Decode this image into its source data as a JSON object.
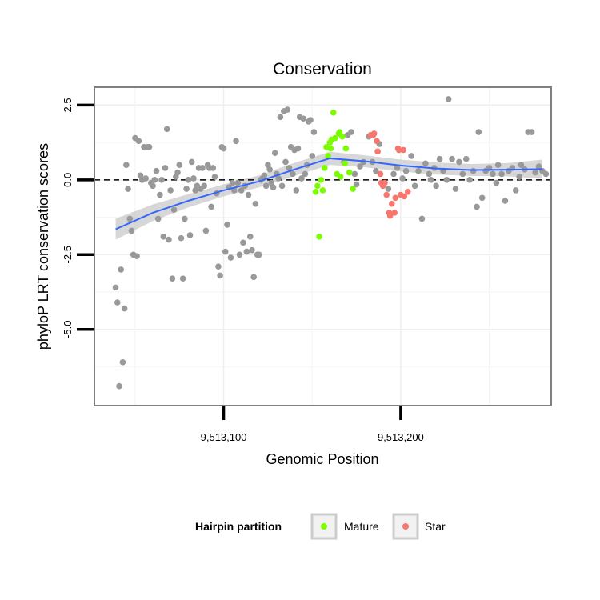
{
  "chart_data": {
    "type": "scatter",
    "title": "Conservation",
    "xlabel": "Genomic Position",
    "ylabel": "phyloP LRT conservation scores",
    "xlim": [
      9513027,
      9513285
    ],
    "ylim": [
      -7.55,
      3.1
    ],
    "x_ticks": [
      {
        "value": 9513100,
        "label": "9,513,100"
      },
      {
        "value": 9513200,
        "label": "9,513,200"
      }
    ],
    "y_ticks": [
      {
        "value": 2.5,
        "label": "2.5"
      },
      {
        "value": 0,
        "label": "0.0"
      },
      {
        "value": -2.5,
        "label": "-2.5"
      },
      {
        "value": -5,
        "label": "-5.0"
      }
    ],
    "reference_line": {
      "y": 0,
      "style": "dashed"
    },
    "legend": {
      "title": "Hairpin partition",
      "position": "bottom",
      "entries": [
        {
          "label": "Mature",
          "color": "#7cfc00"
        },
        {
          "label": "Star",
          "color": "#f8766d"
        }
      ]
    },
    "colors": {
      "other": "#999999",
      "mature": "#7cfc00",
      "star": "#f8766d",
      "smooth": "#3366ff",
      "band": "#bdbdbd"
    },
    "smooth": {
      "x": [
        9513039,
        9513060,
        9513080,
        9513100,
        9513120,
        9513140,
        9513160,
        9513180,
        9513200,
        9513220,
        9513240,
        9513260,
        9513280
      ],
      "y": [
        -1.65,
        -1.1,
        -0.7,
        -0.35,
        -0.05,
        0.35,
        0.72,
        0.62,
        0.48,
        0.38,
        0.33,
        0.34,
        0.36
      ],
      "band": [
        0.35,
        0.28,
        0.22,
        0.2,
        0.2,
        0.22,
        0.22,
        0.2,
        0.2,
        0.2,
        0.2,
        0.22,
        0.32
      ]
    },
    "series": [
      {
        "name": "Other",
        "points": [
          [
            9513039,
            -3.6
          ],
          [
            9513040,
            -4.1
          ],
          [
            9513042,
            -3.0
          ],
          [
            9513043,
            -6.1
          ],
          [
            9513041,
            -6.9
          ],
          [
            9513044,
            -4.3
          ],
          [
            9513045,
            0.5
          ],
          [
            9513046,
            -0.3
          ],
          [
            9513047,
            -1.3
          ],
          [
            9513048,
            -1.7
          ],
          [
            9513049,
            -2.5
          ],
          [
            9513051,
            -2.55
          ],
          [
            9513050,
            1.4
          ],
          [
            9513052,
            1.3
          ],
          [
            9513053,
            0.15
          ],
          [
            9513054,
            0.0
          ],
          [
            9513055,
            1.1
          ],
          [
            9513056,
            0.05
          ],
          [
            9513057,
            1.1
          ],
          [
            9513058,
            1.1
          ],
          [
            9513059,
            -0.1
          ],
          [
            9513060,
            -0.2
          ],
          [
            9513061,
            0.0
          ],
          [
            9513062,
            0.3
          ],
          [
            9513063,
            -1.3
          ],
          [
            9513064,
            -0.5
          ],
          [
            9513065,
            0.0
          ],
          [
            9513066,
            -1.9
          ],
          [
            9513067,
            0.4
          ],
          [
            9513068,
            1.7
          ],
          [
            9513069,
            -2.0
          ],
          [
            9513070,
            -0.35
          ],
          [
            9513071,
            -3.3
          ],
          [
            9513072,
            -1.0
          ],
          [
            9513073,
            0.1
          ],
          [
            9513074,
            0.25
          ],
          [
            9513075,
            0.5
          ],
          [
            9513076,
            -1.95
          ],
          [
            9513077,
            -3.3
          ],
          [
            9513078,
            -1.3
          ],
          [
            9513079,
            -0.3
          ],
          [
            9513080,
            0.0
          ],
          [
            9513081,
            -1.85
          ],
          [
            9513082,
            0.6
          ],
          [
            9513083,
            0.05
          ],
          [
            9513084,
            -0.35
          ],
          [
            9513085,
            -0.2
          ],
          [
            9513086,
            0.4
          ],
          [
            9513087,
            -0.3
          ],
          [
            9513088,
            0.4
          ],
          [
            9513089,
            -0.2
          ],
          [
            9513090,
            -1.7
          ],
          [
            9513091,
            0.5
          ],
          [
            9513092,
            0.4
          ],
          [
            9513093,
            -0.9
          ],
          [
            9513094,
            0.4
          ],
          [
            9513095,
            0.1
          ],
          [
            9513096,
            -0.45
          ],
          [
            9513097,
            -2.9
          ],
          [
            9513098,
            -3.2
          ],
          [
            9513099,
            1.1
          ],
          [
            9513100,
            1.05
          ],
          [
            9513101,
            -2.4
          ],
          [
            9513102,
            -1.5
          ],
          [
            9513103,
            -0.25
          ],
          [
            9513104,
            -2.6
          ],
          [
            9513105,
            -0.1
          ],
          [
            9513106,
            -0.35
          ],
          [
            9513107,
            1.3
          ],
          [
            9513108,
            -0.1
          ],
          [
            9513109,
            -2.5
          ],
          [
            9513110,
            -0.35
          ],
          [
            9513111,
            -2.1
          ],
          [
            9513112,
            -0.2
          ],
          [
            9513113,
            -2.4
          ],
          [
            9513114,
            -0.5
          ],
          [
            9513115,
            -1.9
          ],
          [
            9513116,
            -2.35
          ],
          [
            9513117,
            -3.25
          ],
          [
            9513118,
            -0.8
          ],
          [
            9513119,
            -2.5
          ],
          [
            9513120,
            -2.5
          ],
          [
            9513121,
            0.0
          ],
          [
            9513122,
            0.05
          ],
          [
            9513123,
            0.15
          ],
          [
            9513124,
            -0.2
          ],
          [
            9513125,
            0.5
          ],
          [
            9513126,
            0.35
          ],
          [
            9513127,
            -0.1
          ],
          [
            9513128,
            -0.25
          ],
          [
            9513129,
            0.9
          ],
          [
            9513130,
            0.2
          ],
          [
            9513131,
            0.05
          ],
          [
            9513132,
            2.1
          ],
          [
            9513133,
            -0.2
          ],
          [
            9513134,
            2.3
          ],
          [
            9513135,
            0.6
          ],
          [
            9513136,
            2.35
          ],
          [
            9513137,
            0.4
          ],
          [
            9513138,
            1.1
          ],
          [
            9513139,
            0.2
          ],
          [
            9513140,
            1.0
          ],
          [
            9513141,
            -0.35
          ],
          [
            9513142,
            1.05
          ],
          [
            9513143,
            2.1
          ],
          [
            9513144,
            0.05
          ],
          [
            9513145,
            2.05
          ],
          [
            9513146,
            0.2
          ],
          [
            9513147,
            0.5
          ],
          [
            9513148,
            1.95
          ],
          [
            9513149,
            2.0
          ],
          [
            9513150,
            0.8
          ],
          [
            9513151,
            1.6
          ],
          [
            9513168,
            0.6
          ],
          [
            9513170,
            1.5
          ],
          [
            9513172,
            1.6
          ],
          [
            9513174,
            0.2
          ],
          [
            9513175,
            -0.15
          ],
          [
            9513177,
            0.45
          ],
          [
            9513179,
            0.6
          ],
          [
            9513182,
            1.45
          ],
          [
            9513184,
            0.6
          ],
          [
            9513186,
            0.3
          ],
          [
            9513188,
            1.2
          ],
          [
            9513193,
            -0.3
          ],
          [
            9513196,
            0.2
          ],
          [
            9513198,
            0.4
          ],
          [
            9513201,
            0.05
          ],
          [
            9513203,
            0.3
          ],
          [
            9513206,
            0.8
          ],
          [
            9513208,
            -0.2
          ],
          [
            9513210,
            0.3
          ],
          [
            9513212,
            -1.3
          ],
          [
            9513214,
            0.55
          ],
          [
            9513216,
            0.2
          ],
          [
            9513217,
            0.0
          ],
          [
            9513219,
            0.4
          ],
          [
            9513220,
            -0.2
          ],
          [
            9513222,
            0.7
          ],
          [
            9513224,
            0.3
          ],
          [
            9513226,
            0.0
          ],
          [
            9513227,
            2.7
          ],
          [
            9513229,
            0.7
          ],
          [
            9513231,
            -0.3
          ],
          [
            9513233,
            0.6
          ],
          [
            9513235,
            0.2
          ],
          [
            9513237,
            0.7
          ],
          [
            9513239,
            0.0
          ],
          [
            9513241,
            0.3
          ],
          [
            9513243,
            -0.9
          ],
          [
            9513244,
            1.6
          ],
          [
            9513246,
            -0.6
          ],
          [
            9513248,
            0.3
          ],
          [
            9513250,
            0.4
          ],
          [
            9513252,
            0.2
          ],
          [
            9513254,
            -0.1
          ],
          [
            9513255,
            0.5
          ],
          [
            9513257,
            0.2
          ],
          [
            9513259,
            -0.7
          ],
          [
            9513261,
            0.3
          ],
          [
            9513263,
            0.4
          ],
          [
            9513265,
            -0.35
          ],
          [
            9513267,
            0.1
          ],
          [
            9513268,
            0.5
          ],
          [
            9513270,
            0.35
          ],
          [
            9513272,
            1.6
          ],
          [
            9513274,
            1.6
          ],
          [
            9513276,
            0.25
          ],
          [
            9513278,
            0.45
          ],
          [
            9513280,
            0.3
          ],
          [
            9513282,
            0.2
          ]
        ]
      },
      {
        "name": "Mature",
        "points": [
          [
            9513152,
            -0.4
          ],
          [
            9513153,
            -0.2
          ],
          [
            9513154,
            -1.9
          ],
          [
            9513155,
            0.0
          ],
          [
            9513156,
            -0.35
          ],
          [
            9513157,
            0.4
          ],
          [
            9513158,
            1.1
          ],
          [
            9513159,
            0.8
          ],
          [
            9513160,
            1.25
          ],
          [
            9513161,
            1.35
          ],
          [
            9513162,
            2.25
          ],
          [
            9513163,
            1.4
          ],
          [
            9513164,
            0.2
          ],
          [
            9513165,
            1.55
          ],
          [
            9513166,
            0.1
          ],
          [
            9513167,
            1.45
          ],
          [
            9513169,
            1.05
          ],
          [
            9513171,
            0.25
          ],
          [
            9513173,
            -0.3
          ],
          [
            9513165.5,
            1.6
          ],
          [
            9513168.5,
            0.55
          ],
          [
            9513160.5,
            1.05
          ]
        ]
      },
      {
        "name": "Star",
        "points": [
          [
            9513183,
            1.5
          ],
          [
            9513184.5,
            1.5
          ],
          [
            9513185,
            1.55
          ],
          [
            9513186.5,
            1.3
          ],
          [
            9513187,
            0.95
          ],
          [
            9513189,
            -0.1
          ],
          [
            9513190,
            -0.2
          ],
          [
            9513191,
            -0.1
          ],
          [
            9513192,
            -0.5
          ],
          [
            9513193.5,
            -1.1
          ],
          [
            9513194,
            -1.2
          ],
          [
            9513195,
            -0.8
          ],
          [
            9513196.5,
            -1.1
          ],
          [
            9513197,
            -0.6
          ],
          [
            9513198.5,
            1.05
          ],
          [
            9513199,
            1.0
          ],
          [
            9513200,
            -0.5
          ],
          [
            9513201.5,
            1.0
          ],
          [
            9513202,
            -0.55
          ],
          [
            9513204,
            -0.4
          ],
          [
            9513188.5,
            0.2
          ]
        ]
      }
    ]
  }
}
